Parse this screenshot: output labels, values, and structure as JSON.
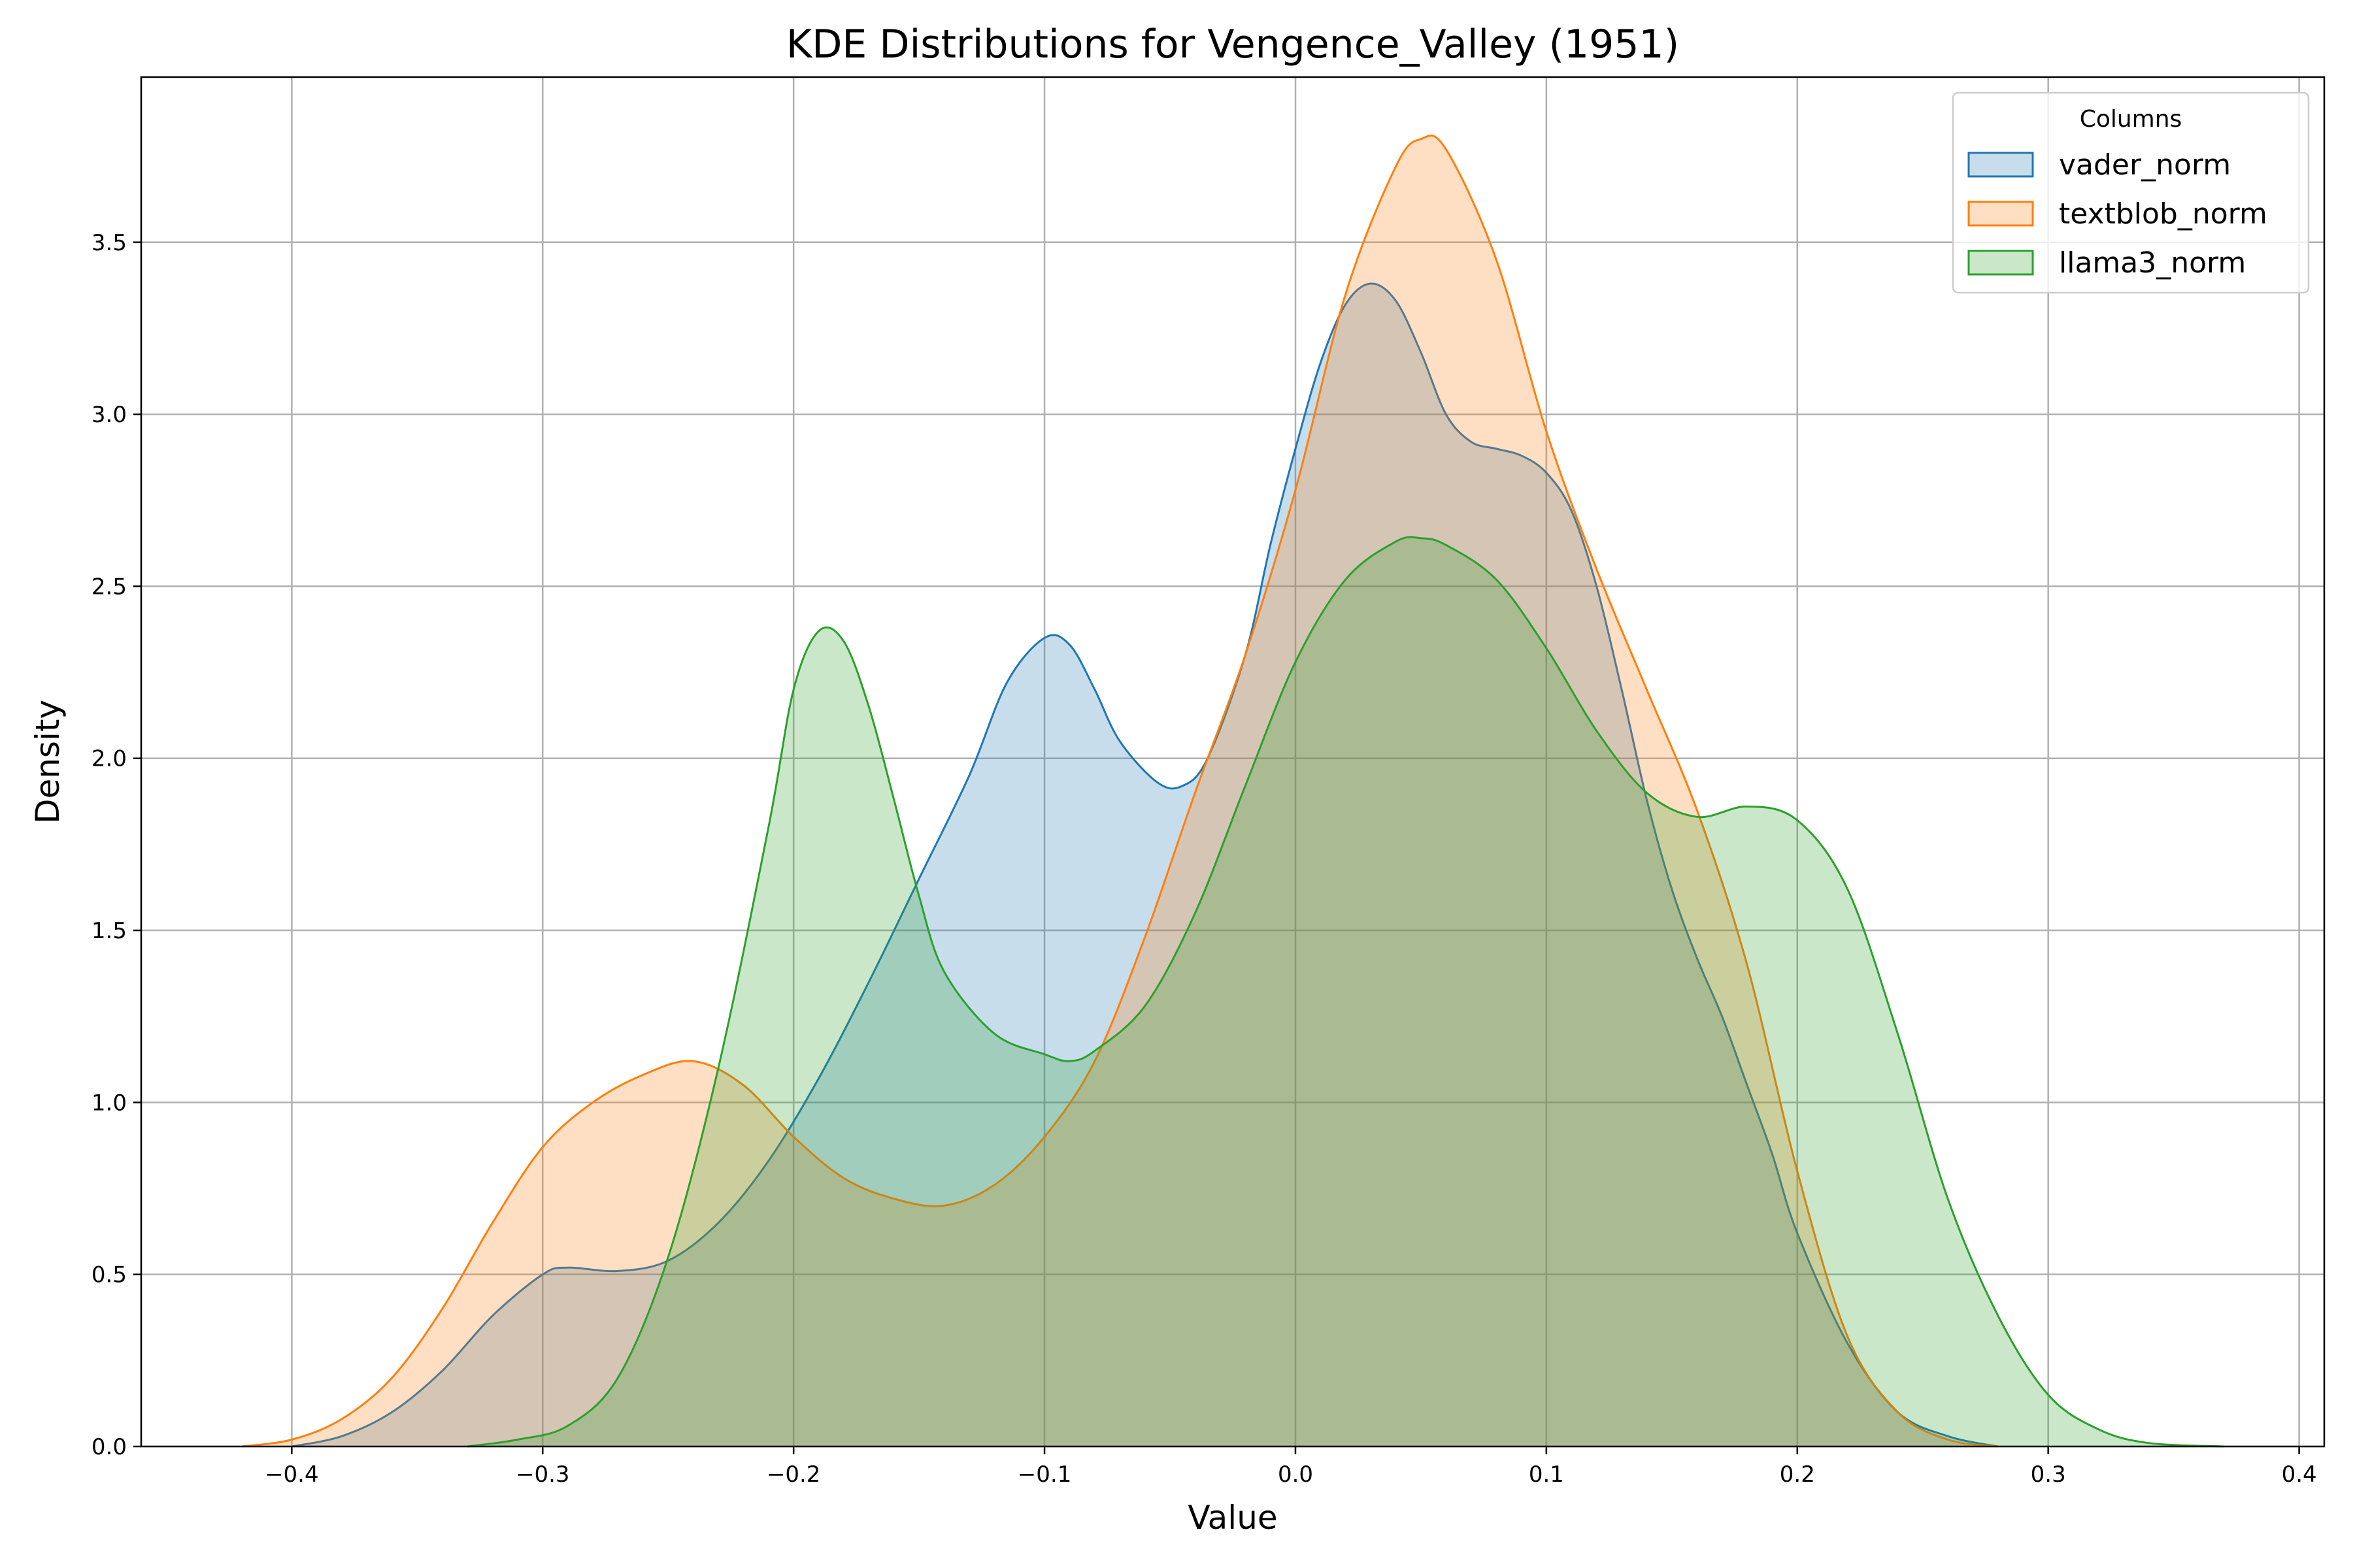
{
  "chart_data": {
    "type": "area",
    "title": "KDE Distributions for Vengence_Valley (1951)",
    "xlabel": "Value",
    "ylabel": "Density",
    "xlim": [
      -0.46,
      0.41
    ],
    "ylim": [
      0,
      3.98
    ],
    "xticks": [
      -0.4,
      -0.3,
      -0.2,
      -0.1,
      0.0,
      0.1,
      0.2,
      0.3,
      0.4
    ],
    "xtick_labels": [
      "−0.4",
      "−0.3",
      "−0.2",
      "−0.1",
      "0.0",
      "0.1",
      "0.2",
      "0.3",
      "0.4"
    ],
    "yticks": [
      0.0,
      0.5,
      1.0,
      1.5,
      2.0,
      2.5,
      3.0,
      3.5
    ],
    "ytick_labels": [
      "0.0",
      "0.5",
      "1.0",
      "1.5",
      "2.0",
      "2.5",
      "3.0",
      "3.5"
    ],
    "grid": true,
    "legend": {
      "title": "Columns",
      "placement": "top-right"
    },
    "series": [
      {
        "name": "vader_norm",
        "color": "#1f77b4",
        "points": [
          [
            -0.4,
            0.0
          ],
          [
            -0.38,
            0.03
          ],
          [
            -0.36,
            0.1
          ],
          [
            -0.34,
            0.22
          ],
          [
            -0.32,
            0.38
          ],
          [
            -0.3,
            0.5
          ],
          [
            -0.29,
            0.52
          ],
          [
            -0.27,
            0.51
          ],
          [
            -0.25,
            0.54
          ],
          [
            -0.23,
            0.65
          ],
          [
            -0.21,
            0.83
          ],
          [
            -0.19,
            1.07
          ],
          [
            -0.17,
            1.35
          ],
          [
            -0.15,
            1.65
          ],
          [
            -0.13,
            1.95
          ],
          [
            -0.115,
            2.22
          ],
          [
            -0.1,
            2.35
          ],
          [
            -0.09,
            2.33
          ],
          [
            -0.08,
            2.2
          ],
          [
            -0.07,
            2.05
          ],
          [
            -0.055,
            1.93
          ],
          [
            -0.045,
            1.92
          ],
          [
            -0.035,
            2.0
          ],
          [
            -0.02,
            2.3
          ],
          [
            -0.01,
            2.62
          ],
          [
            0.0,
            2.9
          ],
          [
            0.01,
            3.15
          ],
          [
            0.02,
            3.32
          ],
          [
            0.03,
            3.38
          ],
          [
            0.04,
            3.33
          ],
          [
            0.05,
            3.18
          ],
          [
            0.06,
            3.0
          ],
          [
            0.07,
            2.92
          ],
          [
            0.08,
            2.9
          ],
          [
            0.09,
            2.88
          ],
          [
            0.1,
            2.83
          ],
          [
            0.11,
            2.72
          ],
          [
            0.12,
            2.5
          ],
          [
            0.13,
            2.2
          ],
          [
            0.14,
            1.88
          ],
          [
            0.15,
            1.62
          ],
          [
            0.16,
            1.42
          ],
          [
            0.17,
            1.25
          ],
          [
            0.18,
            1.05
          ],
          [
            0.19,
            0.85
          ],
          [
            0.2,
            0.62
          ],
          [
            0.22,
            0.3
          ],
          [
            0.24,
            0.1
          ],
          [
            0.26,
            0.03
          ],
          [
            0.28,
            0.0
          ]
        ]
      },
      {
        "name": "textblob_norm",
        "color": "#ff7f0e",
        "points": [
          [
            -0.42,
            0.0
          ],
          [
            -0.4,
            0.02
          ],
          [
            -0.38,
            0.08
          ],
          [
            -0.36,
            0.2
          ],
          [
            -0.34,
            0.4
          ],
          [
            -0.32,
            0.65
          ],
          [
            -0.3,
            0.87
          ],
          [
            -0.28,
            1.0
          ],
          [
            -0.26,
            1.08
          ],
          [
            -0.24,
            1.12
          ],
          [
            -0.22,
            1.05
          ],
          [
            -0.2,
            0.9
          ],
          [
            -0.18,
            0.78
          ],
          [
            -0.16,
            0.72
          ],
          [
            -0.14,
            0.7
          ],
          [
            -0.12,
            0.76
          ],
          [
            -0.1,
            0.9
          ],
          [
            -0.08,
            1.12
          ],
          [
            -0.06,
            1.48
          ],
          [
            -0.04,
            1.9
          ],
          [
            -0.02,
            2.3
          ],
          [
            0.0,
            2.78
          ],
          [
            0.02,
            3.35
          ],
          [
            0.04,
            3.72
          ],
          [
            0.05,
            3.8
          ],
          [
            0.06,
            3.77
          ],
          [
            0.08,
            3.45
          ],
          [
            0.1,
            2.95
          ],
          [
            0.12,
            2.55
          ],
          [
            0.14,
            2.2
          ],
          [
            0.16,
            1.85
          ],
          [
            0.18,
            1.4
          ],
          [
            0.2,
            0.8
          ],
          [
            0.22,
            0.32
          ],
          [
            0.24,
            0.1
          ],
          [
            0.26,
            0.02
          ],
          [
            0.28,
            0.0
          ]
        ]
      },
      {
        "name": "llama3_norm",
        "color": "#2ca02c",
        "points": [
          [
            -0.33,
            0.0
          ],
          [
            -0.31,
            0.02
          ],
          [
            -0.29,
            0.06
          ],
          [
            -0.27,
            0.2
          ],
          [
            -0.25,
            0.55
          ],
          [
            -0.23,
            1.1
          ],
          [
            -0.21,
            1.8
          ],
          [
            -0.2,
            2.2
          ],
          [
            -0.19,
            2.37
          ],
          [
            -0.18,
            2.34
          ],
          [
            -0.17,
            2.15
          ],
          [
            -0.16,
            1.88
          ],
          [
            -0.15,
            1.6
          ],
          [
            -0.14,
            1.38
          ],
          [
            -0.12,
            1.2
          ],
          [
            -0.1,
            1.14
          ],
          [
            -0.09,
            1.12
          ],
          [
            -0.08,
            1.15
          ],
          [
            -0.06,
            1.28
          ],
          [
            -0.04,
            1.55
          ],
          [
            -0.02,
            1.92
          ],
          [
            0.0,
            2.28
          ],
          [
            0.02,
            2.52
          ],
          [
            0.04,
            2.63
          ],
          [
            0.05,
            2.64
          ],
          [
            0.06,
            2.62
          ],
          [
            0.08,
            2.52
          ],
          [
            0.1,
            2.32
          ],
          [
            0.12,
            2.08
          ],
          [
            0.14,
            1.9
          ],
          [
            0.16,
            1.83
          ],
          [
            0.18,
            1.86
          ],
          [
            0.2,
            1.82
          ],
          [
            0.22,
            1.62
          ],
          [
            0.24,
            1.2
          ],
          [
            0.26,
            0.72
          ],
          [
            0.28,
            0.38
          ],
          [
            0.3,
            0.15
          ],
          [
            0.32,
            0.05
          ],
          [
            0.34,
            0.01
          ],
          [
            0.37,
            0.0
          ]
        ]
      }
    ]
  }
}
